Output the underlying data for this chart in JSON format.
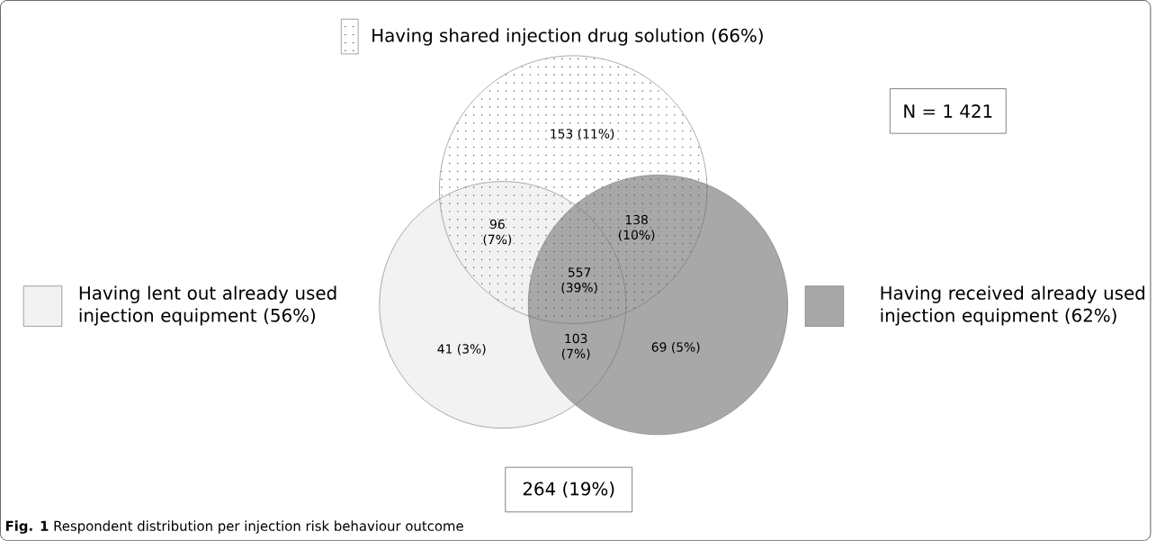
{
  "chart_data": {
    "type": "other",
    "categories": [
      "Having shared injection drug solution",
      "Having lent out already used injection equipment",
      "Having received already used injection equipment"
    ],
    "values": [
      66,
      56,
      62
    ],
    "value_labels": [
      "(66%)",
      "(56%)",
      "(62%)"
    ],
    "colors": [
      "#ffffff",
      "#f2f2f2",
      "#a8a8a8"
    ],
    "annotations": [
      "153 (11%)",
      "96 (7%)",
      "138 (10%)",
      "557 (39%)",
      "41 (3%)",
      "103 (7%)",
      "69 (5%)",
      "N = 1 421",
      "264 (19%)",
      "**Fig. 1** Respondent distribution per injection risk behaviour outcome"
    ]
  }
}
